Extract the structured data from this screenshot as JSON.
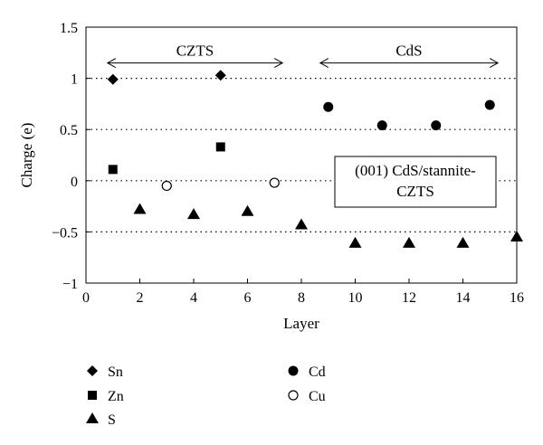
{
  "chart_data": {
    "type": "scatter",
    "title": "",
    "xlabel": "Layer",
    "ylabel": "Charge (e)",
    "xlim": [
      0,
      16
    ],
    "ylim": [
      -1,
      1.5
    ],
    "x_ticks": [
      0,
      2,
      4,
      6,
      8,
      10,
      12,
      14,
      16
    ],
    "x_tick_labels": [
      "0",
      "2",
      "4",
      "6",
      "8",
      "10",
      "12",
      "14",
      "16"
    ],
    "y_ticks": [
      -1,
      -0.5,
      0,
      0.5,
      1,
      1.5
    ],
    "y_tick_labels": [
      "−1",
      "−0.5",
      "0",
      "0.5",
      "1",
      "1.5"
    ],
    "gridlines_y": [
      -0.5,
      0,
      0.5,
      1
    ],
    "grid": "dotted horizontal",
    "legend": "below",
    "series": [
      {
        "name": "Sn",
        "marker": "diamond-filled",
        "points": [
          {
            "x": 1,
            "y": 0.99
          },
          {
            "x": 5,
            "y": 1.03
          }
        ]
      },
      {
        "name": "Zn",
        "marker": "square-filled",
        "points": [
          {
            "x": 1,
            "y": 0.11
          },
          {
            "x": 5,
            "y": 0.33
          }
        ]
      },
      {
        "name": "S",
        "marker": "triangle-filled",
        "points": [
          {
            "x": 2,
            "y": -0.28
          },
          {
            "x": 4,
            "y": -0.33
          },
          {
            "x": 6,
            "y": -0.3
          },
          {
            "x": 8,
            "y": -0.43
          },
          {
            "x": 10,
            "y": -0.61
          },
          {
            "x": 12,
            "y": -0.61
          },
          {
            "x": 14,
            "y": -0.61
          },
          {
            "x": 16,
            "y": -0.55
          }
        ]
      },
      {
        "name": "Cd",
        "marker": "circle-filled",
        "points": [
          {
            "x": 9,
            "y": 0.72
          },
          {
            "x": 11,
            "y": 0.54
          },
          {
            "x": 13,
            "y": 0.54
          },
          {
            "x": 15,
            "y": 0.74
          }
        ]
      },
      {
        "name": "Cu",
        "marker": "circle-open",
        "points": [
          {
            "x": 3,
            "y": -0.05
          },
          {
            "x": 7,
            "y": -0.02
          }
        ]
      }
    ],
    "annotations": [
      {
        "text": "CZTS",
        "x_from": 0.8,
        "x_to": 7.3,
        "y": 1.15
      },
      {
        "text": "CdS",
        "x_from": 8.7,
        "x_to": 15.3,
        "y": 1.15
      }
    ],
    "label_box": {
      "lines": [
        "(001) CdS/stannite-",
        "CZTS"
      ]
    }
  }
}
